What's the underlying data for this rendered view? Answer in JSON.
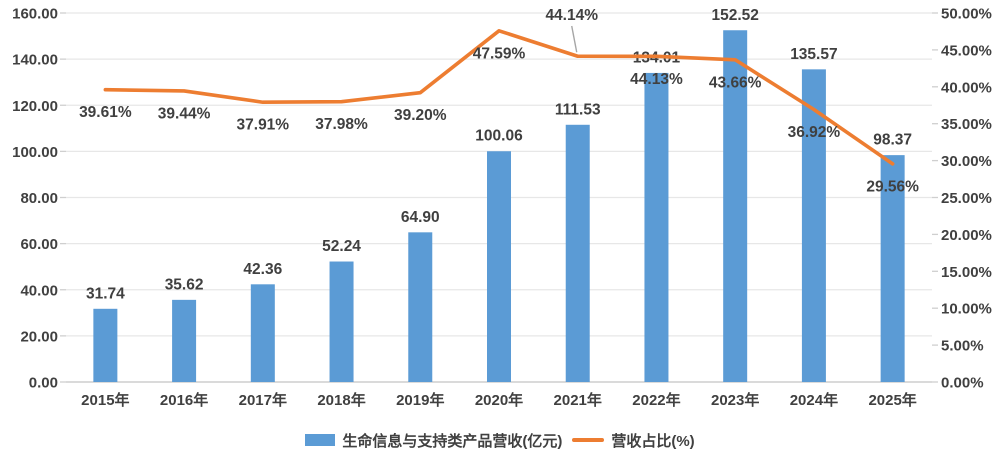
{
  "chart_data": {
    "type": "combo",
    "title": "",
    "categories": [
      "2015年",
      "2016年",
      "2017年",
      "2018年",
      "2019年",
      "2020年",
      "2021年",
      "2022年",
      "2023年",
      "2024年",
      "2025年"
    ],
    "series": [
      {
        "name": "生命信息与支持类产品营收(亿元)",
        "type": "bar",
        "axis": "left",
        "color": "#5B9BD5",
        "values": [
          31.74,
          35.62,
          42.36,
          52.24,
          64.9,
          100.06,
          111.53,
          134.01,
          152.52,
          135.57,
          98.37
        ],
        "labels": [
          "31.74",
          "35.62",
          "42.36",
          "52.24",
          "64.90",
          "100.06",
          "111.53",
          "134.01",
          "152.52",
          "135.57",
          "98.37"
        ]
      },
      {
        "name": "营收占比(%)",
        "type": "line",
        "axis": "right",
        "color": "#ED7D31",
        "values": [
          39.61,
          39.44,
          37.91,
          37.98,
          39.2,
          47.59,
          44.14,
          44.13,
          43.66,
          36.92,
          29.56
        ],
        "labels": [
          "39.61%",
          "39.44%",
          "37.91%",
          "37.98%",
          "39.20%",
          "47.59%",
          "44.14%",
          "44.13%",
          "43.66%",
          "36.92%",
          "29.56%"
        ],
        "callout_index": 6
      }
    ],
    "left_axis": {
      "min": 0,
      "max": 160,
      "step": 20,
      "tick_labels_top_to_bottom": [
        "160.00",
        "140.00",
        "120.00",
        "100.00",
        "80.00",
        "60.00",
        "40.00",
        "20.00",
        "0.00"
      ]
    },
    "right_axis": {
      "min": 0,
      "max": 50,
      "step": 5,
      "tick_labels_top_to_bottom": [
        "50.00%",
        "45.00%",
        "40.00%",
        "35.00%",
        "30.00%",
        "25.00%",
        "20.00%",
        "15.00%",
        "10.00%",
        "5.00%",
        "0.00%"
      ]
    },
    "layout": {
      "grid": "horizontal",
      "legend_position": "bottom",
      "background": "#FFFFFF",
      "text_color": "#404040",
      "gridline_color": "#E7E7E7",
      "axis_line_color": "#CFCFCF",
      "callout_line_color": "#A6A6A6"
    }
  }
}
